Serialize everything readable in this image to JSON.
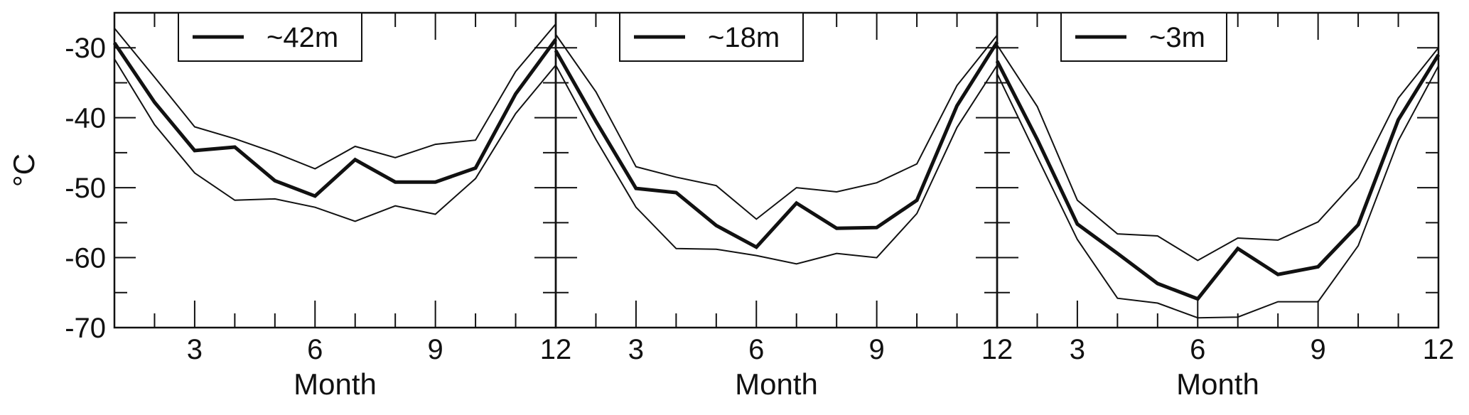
{
  "chart_data": {
    "type": "line",
    "ylabel": "°C",
    "xlabel": "Month",
    "ylim": [
      -70,
      -25
    ],
    "xlim": [
      1,
      12
    ],
    "x_ticks": [
      3,
      6,
      9,
      12
    ],
    "x_tick_labels": [
      "3",
      "6",
      "9",
      "12"
    ],
    "y_ticks": [
      -30,
      -40,
      -50,
      -60,
      -70
    ],
    "y_tick_labels": [
      "-30",
      "-40",
      "-50",
      "-60",
      "-70"
    ],
    "legend_position": "top-left",
    "grid": false,
    "panels": [
      {
        "legend_label": "~42m",
        "x": [
          1,
          2,
          3,
          4,
          5,
          6,
          7,
          8,
          9,
          10,
          11,
          12
        ],
        "series": [
          {
            "role": "mean",
            "values": [
              -29.3,
              -37.8,
              -44.7,
              -44.2,
              -49.0,
              -51.2,
              -46.0,
              -49.2,
              -49.2,
              -47.2,
              -36.6,
              -28.8
            ]
          },
          {
            "role": "upper",
            "values": [
              -27.2,
              -34.2,
              -41.3,
              -43.0,
              -45.0,
              -47.3,
              -44.1,
              -45.7,
              -43.8,
              -43.2,
              -33.4,
              -26.6
            ]
          },
          {
            "role": "lower",
            "values": [
              -31.6,
              -41.0,
              -47.9,
              -51.8,
              -51.6,
              -52.8,
              -54.8,
              -52.6,
              -53.8,
              -48.7,
              -39.4,
              -32.5
            ]
          }
        ]
      },
      {
        "legend_label": "~18m",
        "x": [
          1,
          2,
          3,
          4,
          5,
          6,
          7,
          8,
          9,
          10,
          11,
          12
        ],
        "series": [
          {
            "role": "mean",
            "values": [
              -30.4,
              -40.5,
              -50.1,
              -50.7,
              -55.4,
              -58.5,
              -52.2,
              -55.8,
              -55.7,
              -51.8,
              -38.3,
              -29.2
            ]
          },
          {
            "role": "upper",
            "values": [
              -28.1,
              -36.3,
              -47.0,
              -48.5,
              -49.7,
              -54.5,
              -50.0,
              -50.6,
              -49.3,
              -46.6,
              -35.4,
              -28.2
            ]
          },
          {
            "role": "lower",
            "values": [
              -32.5,
              -43.1,
              -52.8,
              -58.7,
              -58.8,
              -59.7,
              -60.9,
              -59.4,
              -60.0,
              -53.7,
              -41.4,
              -32.5
            ]
          }
        ]
      },
      {
        "legend_label": "~3m",
        "x": [
          1,
          2,
          3,
          4,
          5,
          6,
          7,
          8,
          9,
          10,
          11,
          12
        ],
        "series": [
          {
            "role": "mean",
            "values": [
              -31.9,
              -43.1,
              -55.2,
              -59.4,
              -63.7,
              -65.9,
              -58.7,
              -62.4,
              -61.3,
              -55.3,
              -40.3,
              -31.0
            ]
          },
          {
            "role": "upper",
            "values": [
              -29.6,
              -38.4,
              -51.8,
              -56.6,
              -56.9,
              -60.4,
              -57.2,
              -57.5,
              -54.9,
              -48.6,
              -37.2,
              -30.0
            ]
          },
          {
            "role": "lower",
            "values": [
              -33.7,
              -45.6,
              -57.4,
              -65.8,
              -66.5,
              -68.6,
              -68.5,
              -66.3,
              -66.3,
              -58.3,
              -43.3,
              -32.6
            ]
          }
        ]
      }
    ]
  }
}
